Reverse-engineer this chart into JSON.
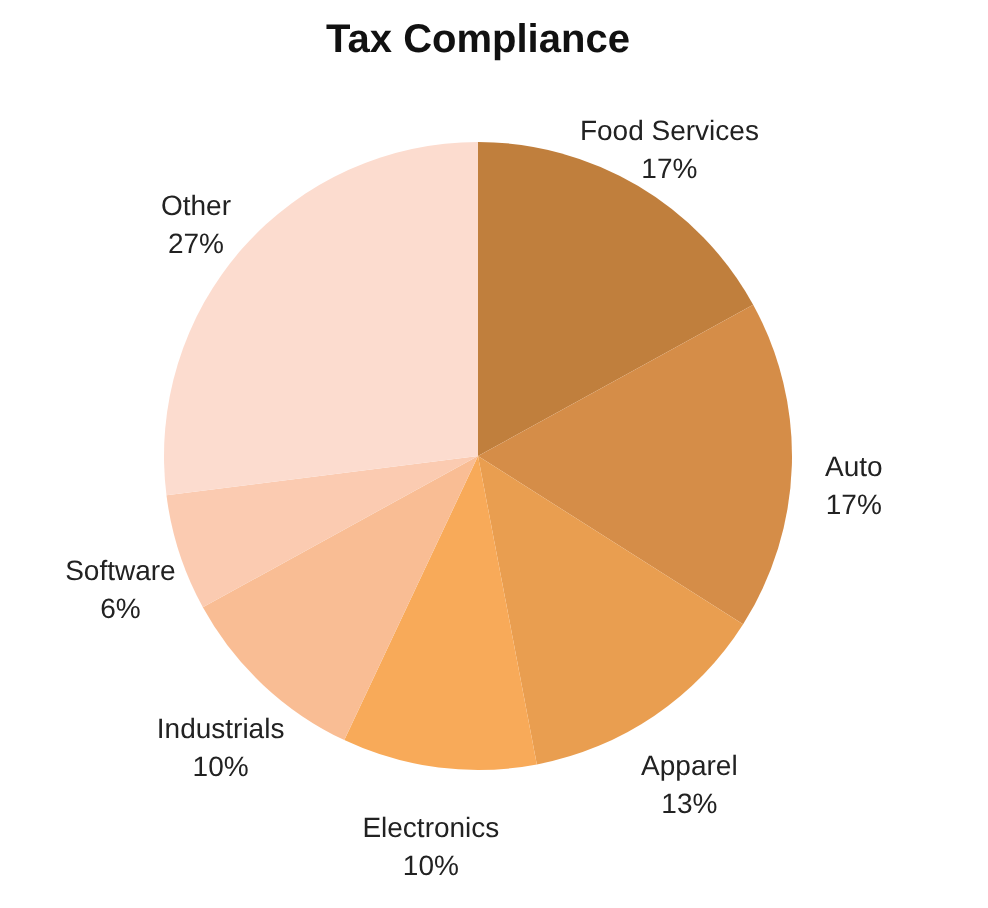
{
  "chart_data": {
    "type": "pie",
    "title": "Tax Compliance",
    "categories": [
      "Food Services",
      "Auto",
      "Apparel",
      "Electronics",
      "Industrials",
      "Software",
      "Other"
    ],
    "values": [
      17,
      17,
      13,
      10,
      10,
      6,
      27
    ],
    "value_labels": [
      "17%",
      "17%",
      "13%",
      "10%",
      "10%",
      "6%",
      "27%"
    ],
    "colors": [
      "#c07f3d",
      "#d58d48",
      "#e99e50",
      "#f8aa59",
      "#f9bd94",
      "#fbcbb1",
      "#fcdccf"
    ],
    "legend": false
  }
}
